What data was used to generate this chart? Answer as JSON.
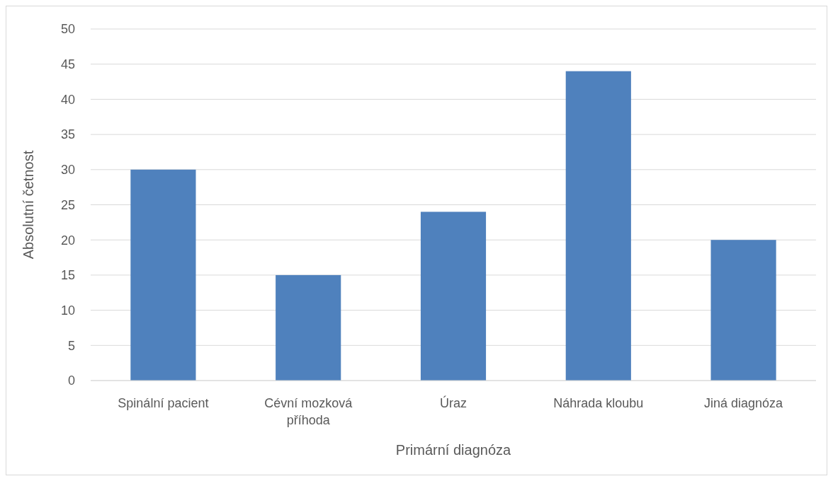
{
  "chart_data": {
    "type": "bar",
    "xlabel": "Primární diagnóza",
    "ylabel": "Absolutní četnost",
    "categories": [
      "Spinální pacient",
      "Cévní mozková příhoda",
      "Úraz",
      "Náhrada kloubu",
      "Jiná diagnóza"
    ],
    "values": [
      30,
      15,
      24,
      44,
      20
    ],
    "color": "#4f81bd",
    "ylim": [
      0,
      50
    ],
    "yticks": [
      0,
      5,
      10,
      15,
      20,
      25,
      30,
      35,
      40,
      45,
      50
    ],
    "grid": "y"
  }
}
